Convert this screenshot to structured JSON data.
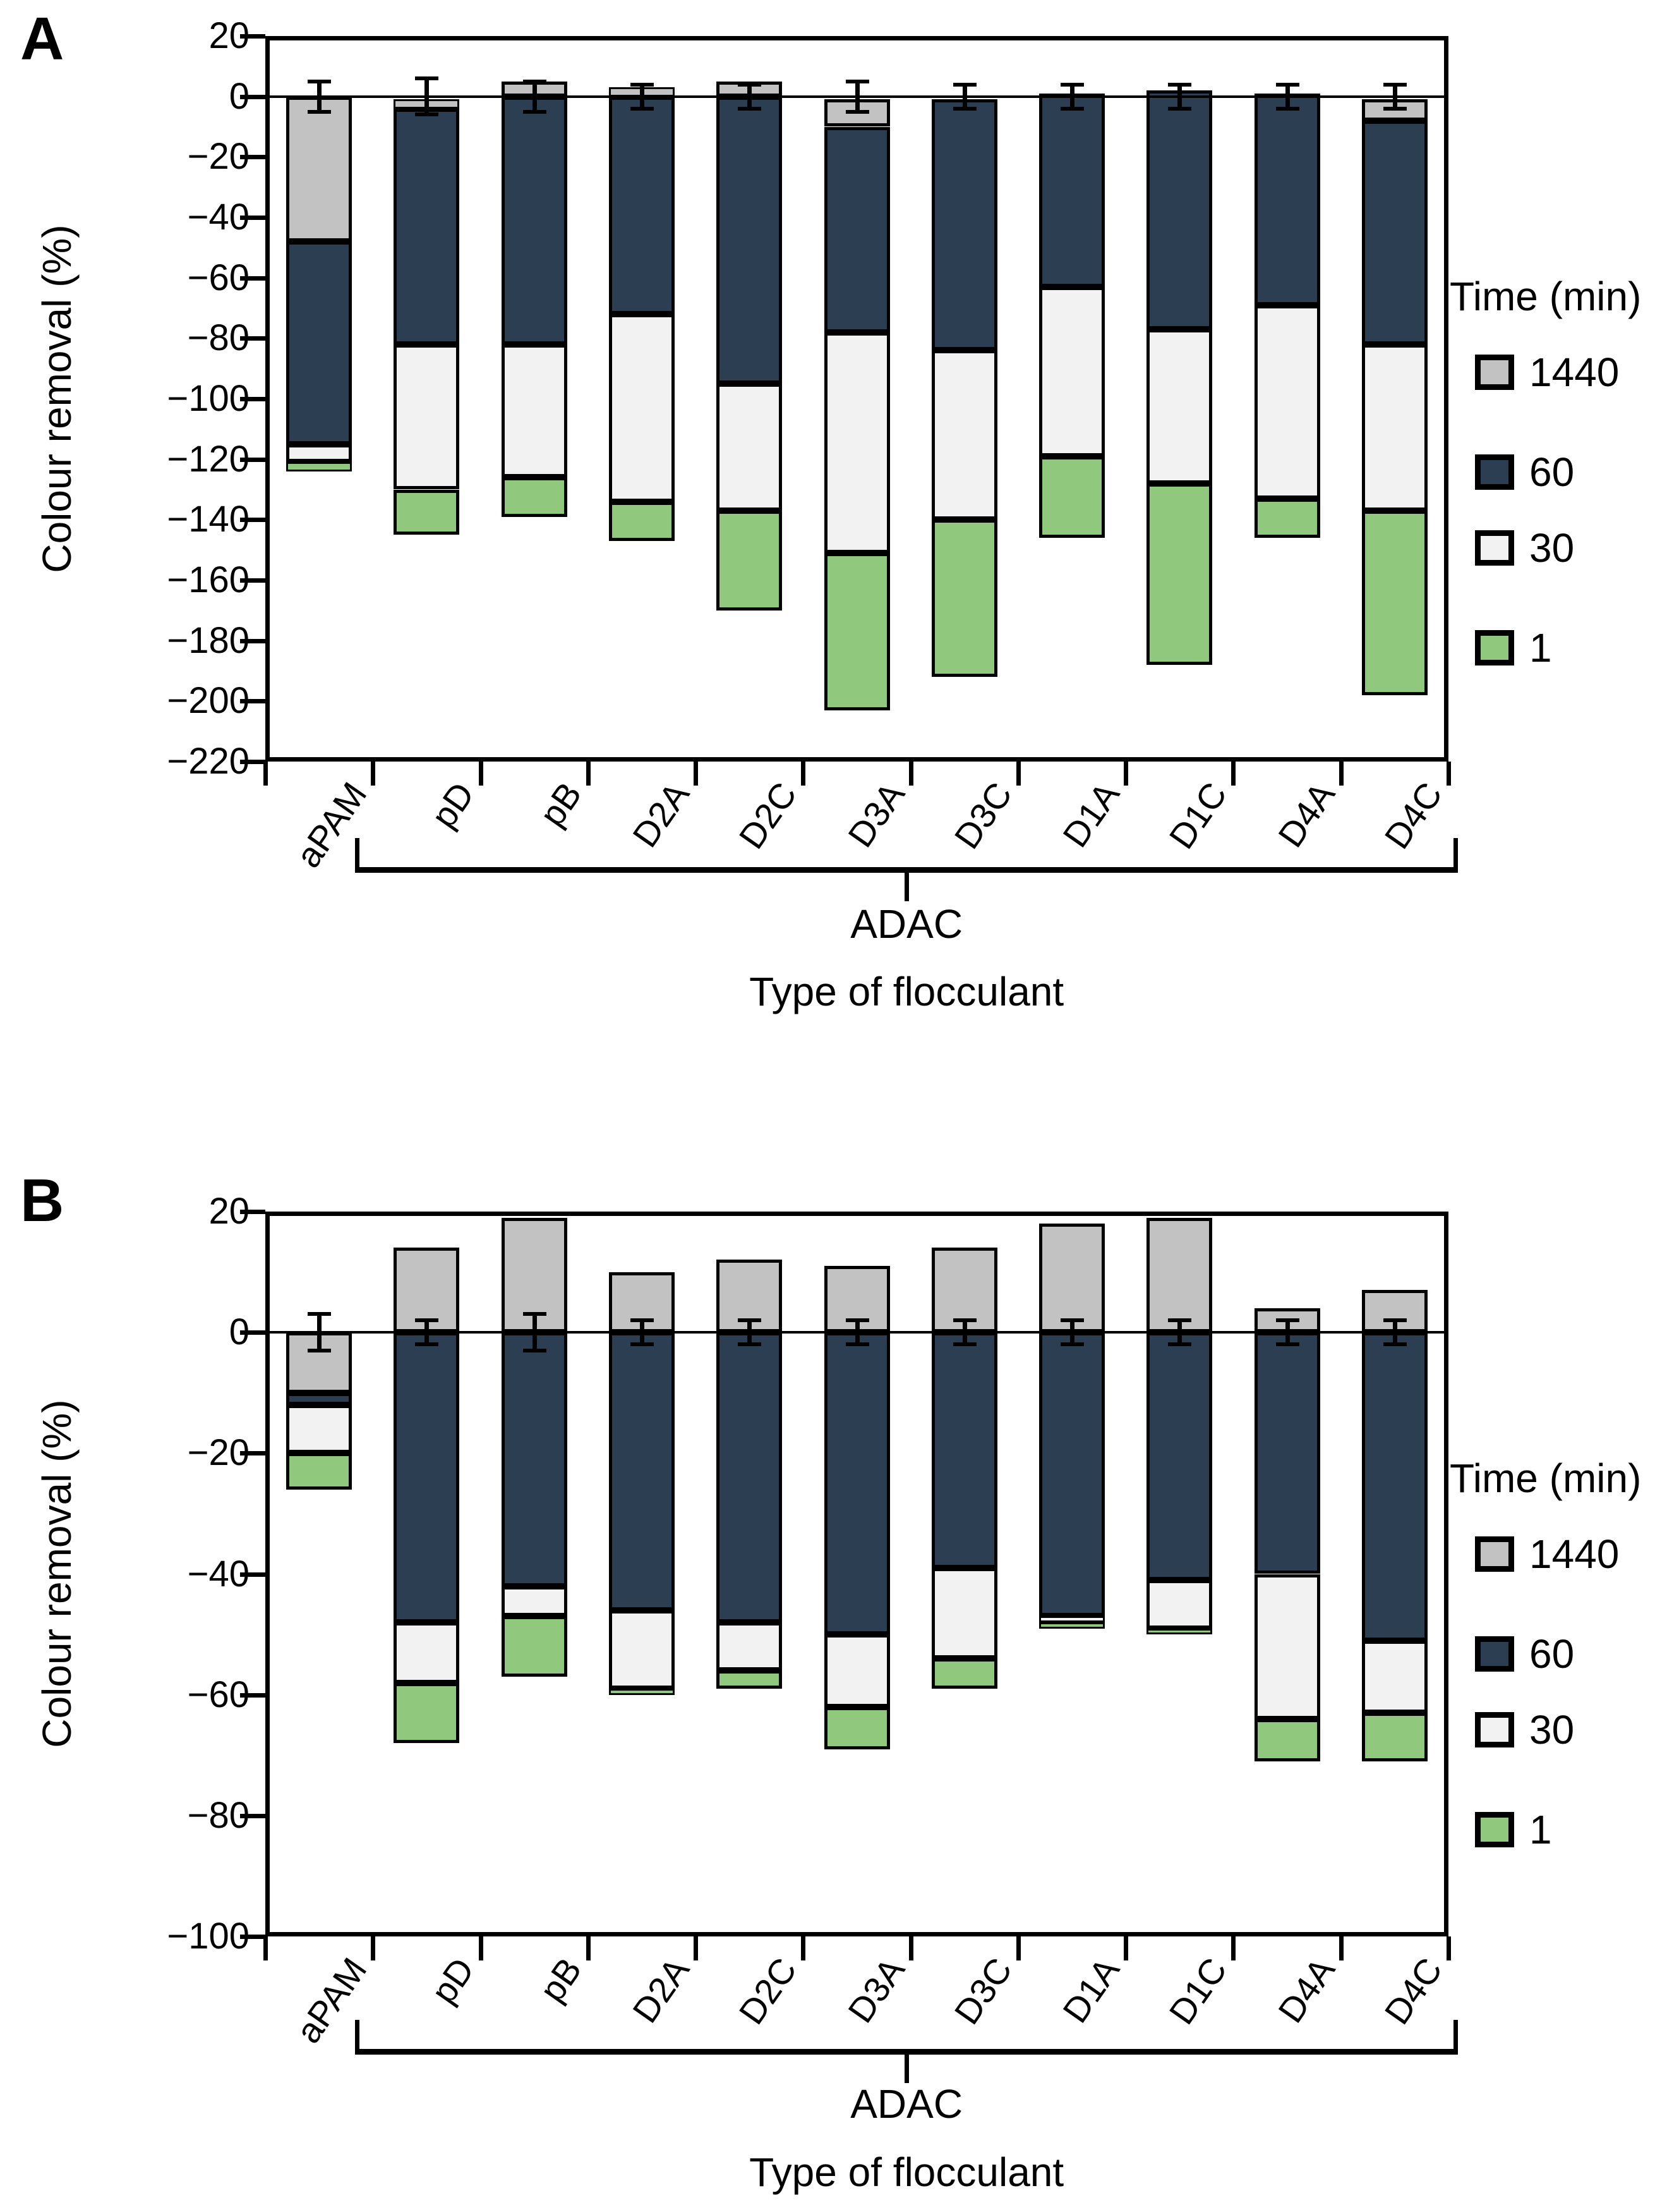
{
  "colors": {
    "t1440": "#c2c2c2",
    "t60": "#2b3e52",
    "t30": "#f2f2f2",
    "t1": "#90c97e",
    "axis": "#000000",
    "background": "#ffffff"
  },
  "chart_data": [
    {
      "panel_label": "A",
      "type": "bar",
      "stacked": true,
      "ylabel": "Colour removal (%)",
      "xlabel": "Type of flocculant",
      "group_label": "ADAC",
      "group_span": {
        "from": "pD",
        "to": "D4C"
      },
      "ylim": [
        -220,
        20
      ],
      "yticks": [
        20,
        0,
        -20,
        -40,
        -60,
        -80,
        -100,
        -120,
        -140,
        -160,
        -180,
        -200,
        -220
      ],
      "grid": false,
      "legend": {
        "title": "Time (min)",
        "position": "right",
        "entries": [
          {
            "label": "1440",
            "color_key": "t1440"
          },
          {
            "label": "60",
            "color_key": "t60"
          },
          {
            "label": "30",
            "color_key": "t30"
          },
          {
            "label": "1",
            "color_key": "t1"
          }
        ]
      },
      "categories": [
        "aPAM",
        "pD",
        "pB",
        "D2A",
        "D2C",
        "D3A",
        "D3C",
        "D1A",
        "D1C",
        "D4A",
        "D4C"
      ],
      "bars": [
        {
          "category": "aPAM",
          "error_half": 5,
          "segments": [
            {
              "time": "1440",
              "from": 0,
              "to": -48
            },
            {
              "time": "60",
              "from": -48,
              "to": -115
            },
            {
              "time": "30",
              "from": -115,
              "to": -121
            },
            {
              "time": "1",
              "from": -121,
              "to": -124
            }
          ]
        },
        {
          "category": "pD",
          "error_half": 6,
          "segments": [
            {
              "time": "1440",
              "from": -1,
              "to": -4
            },
            {
              "time": "60",
              "from": -4,
              "to": -82
            },
            {
              "time": "30",
              "from": -82,
              "to": -130
            },
            {
              "time": "1",
              "from": -130,
              "to": -145
            }
          ]
        },
        {
          "category": "pB",
          "error_half": 5,
          "segments": [
            {
              "time": "1440",
              "from": 5,
              "to": 0
            },
            {
              "time": "60",
              "from": 0,
              "to": -82
            },
            {
              "time": "30",
              "from": -82,
              "to": -126
            },
            {
              "time": "1",
              "from": -126,
              "to": -139
            }
          ]
        },
        {
          "category": "D2A",
          "error_half": 4,
          "segments": [
            {
              "time": "1440",
              "from": 3,
              "to": 0
            },
            {
              "time": "60",
              "from": 0,
              "to": -72
            },
            {
              "time": "30",
              "from": -72,
              "to": -134
            },
            {
              "time": "1",
              "from": -134,
              "to": -147
            }
          ]
        },
        {
          "category": "D2C",
          "error_half": 4,
          "segments": [
            {
              "time": "1440",
              "from": 5,
              "to": 0
            },
            {
              "time": "60",
              "from": 0,
              "to": -95
            },
            {
              "time": "30",
              "from": -95,
              "to": -137
            },
            {
              "time": "1",
              "from": -137,
              "to": -170
            }
          ]
        },
        {
          "category": "D3A",
          "error_half": 5,
          "segments": [
            {
              "time": "1440",
              "from": -1,
              "to": -10
            },
            {
              "time": "60",
              "from": -10,
              "to": -78
            },
            {
              "time": "30",
              "from": -78,
              "to": -151
            },
            {
              "time": "1",
              "from": -151,
              "to": -203
            }
          ]
        },
        {
          "category": "D3C",
          "error_half": 4,
          "segments": [
            {
              "time": "60",
              "from": -1,
              "to": -84
            },
            {
              "time": "30",
              "from": -84,
              "to": -140
            },
            {
              "time": "1",
              "from": -140,
              "to": -192
            }
          ]
        },
        {
          "category": "D1A",
          "error_half": 4,
          "segments": [
            {
              "time": "60",
              "from": 1,
              "to": -63
            },
            {
              "time": "30",
              "from": -63,
              "to": -119
            },
            {
              "time": "1",
              "from": -119,
              "to": -146
            }
          ]
        },
        {
          "category": "D1C",
          "error_half": 4,
          "segments": [
            {
              "time": "60",
              "from": 2,
              "to": -77
            },
            {
              "time": "30",
              "from": -77,
              "to": -128
            },
            {
              "time": "1",
              "from": -128,
              "to": -188
            }
          ]
        },
        {
          "category": "D4A",
          "error_half": 4,
          "segments": [
            {
              "time": "60",
              "from": 1,
              "to": -69
            },
            {
              "time": "30",
              "from": -69,
              "to": -133
            },
            {
              "time": "1",
              "from": -133,
              "to": -146
            }
          ]
        },
        {
          "category": "D4C",
          "error_half": 4,
          "segments": [
            {
              "time": "1440",
              "from": -1,
              "to": -8
            },
            {
              "time": "60",
              "from": -8,
              "to": -82
            },
            {
              "time": "30",
              "from": -82,
              "to": -137
            },
            {
              "time": "1",
              "from": -137,
              "to": -198
            }
          ]
        }
      ]
    },
    {
      "panel_label": "B",
      "type": "bar",
      "stacked": true,
      "ylabel": "Colour removal (%)",
      "xlabel": "Type of flocculant",
      "group_label": "ADAC",
      "group_span": {
        "from": "pD",
        "to": "D4C"
      },
      "ylim": [
        -100,
        20
      ],
      "yticks": [
        20,
        0,
        -20,
        -40,
        -60,
        -80,
        -100
      ],
      "grid": false,
      "legend": {
        "title": "Time (min)",
        "position": "right",
        "entries": [
          {
            "label": "1440",
            "color_key": "t1440"
          },
          {
            "label": "60",
            "color_key": "t60"
          },
          {
            "label": "30",
            "color_key": "t30"
          },
          {
            "label": "1",
            "color_key": "t1"
          }
        ]
      },
      "categories": [
        "aPAM",
        "pD",
        "pB",
        "D2A",
        "D2C",
        "D3A",
        "D3C",
        "D1A",
        "D1C",
        "D4A",
        "D4C"
      ],
      "bars": [
        {
          "category": "aPAM",
          "error_half": 3,
          "segments": [
            {
              "time": "1440",
              "from": 0,
              "to": -10
            },
            {
              "time": "60",
              "from": -10,
              "to": -12
            },
            {
              "time": "30",
              "from": -12,
              "to": -20
            },
            {
              "time": "1",
              "from": -20,
              "to": -26
            }
          ]
        },
        {
          "category": "pD",
          "error_half": 2,
          "segments": [
            {
              "time": "1440",
              "from": 14,
              "to": 0
            },
            {
              "time": "60",
              "from": 0,
              "to": -48
            },
            {
              "time": "30",
              "from": -48,
              "to": -58
            },
            {
              "time": "1",
              "from": -58,
              "to": -68
            }
          ]
        },
        {
          "category": "pB",
          "error_half": 3,
          "segments": [
            {
              "time": "1440",
              "from": 19,
              "to": 0
            },
            {
              "time": "60",
              "from": 0,
              "to": -42
            },
            {
              "time": "30",
              "from": -42,
              "to": -47
            },
            {
              "time": "1",
              "from": -47,
              "to": -57
            }
          ]
        },
        {
          "category": "D2A",
          "error_half": 2,
          "segments": [
            {
              "time": "1440",
              "from": 10,
              "to": 0
            },
            {
              "time": "60",
              "from": 0,
              "to": -46
            },
            {
              "time": "30",
              "from": -46,
              "to": -59
            },
            {
              "time": "1",
              "from": -59,
              "to": -60
            }
          ]
        },
        {
          "category": "D2C",
          "error_half": 2,
          "segments": [
            {
              "time": "1440",
              "from": 12,
              "to": 0
            },
            {
              "time": "60",
              "from": 0,
              "to": -48
            },
            {
              "time": "30",
              "from": -48,
              "to": -56
            },
            {
              "time": "1",
              "from": -56,
              "to": -59
            }
          ]
        },
        {
          "category": "D3A",
          "error_half": 2,
          "segments": [
            {
              "time": "1440",
              "from": 11,
              "to": 0
            },
            {
              "time": "60",
              "from": 0,
              "to": -50
            },
            {
              "time": "30",
              "from": -50,
              "to": -62
            },
            {
              "time": "1",
              "from": -62,
              "to": -69
            }
          ]
        },
        {
          "category": "D3C",
          "error_half": 2,
          "segments": [
            {
              "time": "1440",
              "from": 14,
              "to": 0
            },
            {
              "time": "60",
              "from": 0,
              "to": -39
            },
            {
              "time": "30",
              "from": -39,
              "to": -54
            },
            {
              "time": "1",
              "from": -54,
              "to": -59
            }
          ]
        },
        {
          "category": "D1A",
          "error_half": 2,
          "segments": [
            {
              "time": "1440",
              "from": 18,
              "to": 0
            },
            {
              "time": "60",
              "from": 0,
              "to": -47
            },
            {
              "time": "30",
              "from": -47,
              "to": -48
            },
            {
              "time": "1",
              "from": -48,
              "to": -49
            }
          ]
        },
        {
          "category": "D1C",
          "error_half": 2,
          "segments": [
            {
              "time": "1440",
              "from": 19,
              "to": 0
            },
            {
              "time": "60",
              "from": 0,
              "to": -41
            },
            {
              "time": "30",
              "from": -41,
              "to": -49
            },
            {
              "time": "1",
              "from": -49,
              "to": -50
            }
          ]
        },
        {
          "category": "D4A",
          "error_half": 2,
          "segments": [
            {
              "time": "1440",
              "from": 4,
              "to": 0
            },
            {
              "time": "60",
              "from": 0,
              "to": -40
            },
            {
              "time": "30",
              "from": -40,
              "to": -64
            },
            {
              "time": "1",
              "from": -64,
              "to": -71
            }
          ]
        },
        {
          "category": "D4C",
          "error_half": 2,
          "segments": [
            {
              "time": "1440",
              "from": 7,
              "to": 0
            },
            {
              "time": "60",
              "from": 0,
              "to": -51
            },
            {
              "time": "30",
              "from": -51,
              "to": -63
            },
            {
              "time": "1",
              "from": -63,
              "to": -71
            }
          ]
        }
      ]
    }
  ]
}
